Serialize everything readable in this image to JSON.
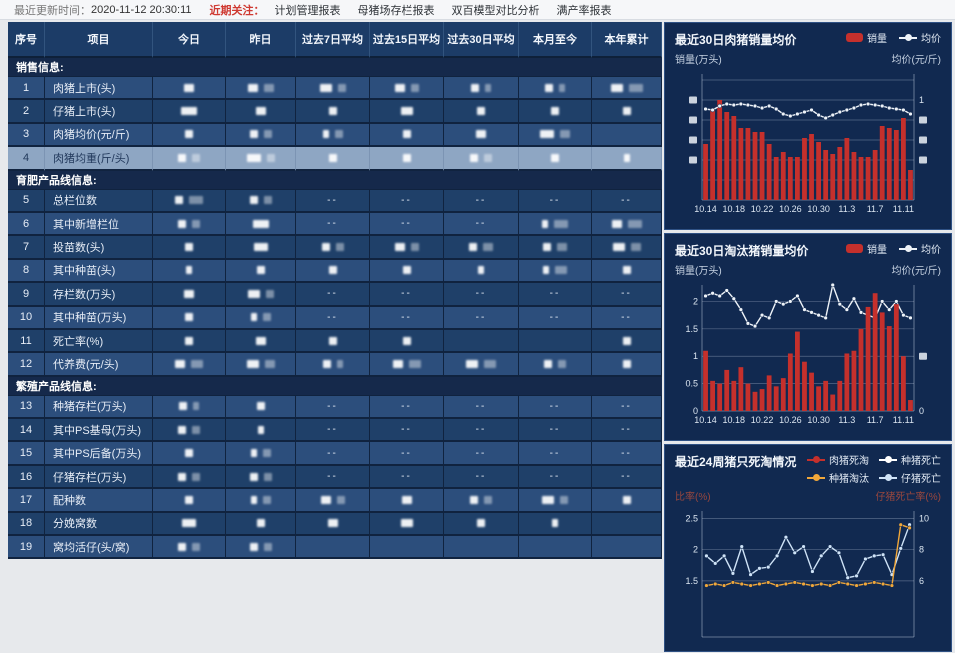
{
  "topbar": {
    "update_label": "最近更新时间：",
    "update_time": "2020-11-12 20:30:11",
    "focus_label": "近期关注：",
    "links": [
      "计划管理报表",
      "母猪场存栏报表",
      "双百模型对比分析",
      "满产率报表"
    ]
  },
  "table": {
    "redacted": true,
    "columns": [
      "序号",
      "项目",
      "今日",
      "昨日",
      "过去7日平均",
      "过去15日平均",
      "过去30日平均",
      "本月至今",
      "本年累计"
    ],
    "sections": [
      {
        "title": "销售信息:",
        "rows": [
          {
            "no": "1",
            "label": "肉猪上市(头)",
            "cells": [
              [
                10
              ],
              [
                10,
                10
              ],
              [
                12,
                8
              ],
              [
                10,
                8
              ],
              [
                8,
                6
              ],
              [
                8,
                6
              ],
              [
                12,
                14
              ]
            ]
          },
          {
            "no": "2",
            "label": "仔猪上市(头)",
            "cells": [
              [
                16
              ],
              [
                10
              ],
              [
                8
              ],
              [
                12
              ],
              [
                8
              ],
              [
                8
              ],
              [
                8
              ]
            ]
          },
          {
            "no": "3",
            "label": "肉猪均价(元/斤)",
            "cells": [
              [
                8
              ],
              [
                8,
                8
              ],
              [
                6,
                8
              ],
              [
                8
              ],
              [
                10
              ],
              [
                14,
                10
              ],
              []
            ]
          },
          {
            "no": "4",
            "label": "肉猪均重(斤/头)",
            "cells": [
              [
                8,
                8
              ],
              [
                14,
                8
              ],
              [
                8
              ],
              [
                8
              ],
              [
                8,
                8
              ],
              [
                8
              ],
              [
                6
              ]
            ],
            "highlight": true
          }
        ]
      },
      {
        "title": "育肥产品线信息:",
        "rows": [
          {
            "no": "5",
            "label": "总栏位数",
            "cells": [
              [
                8,
                14
              ],
              [
                8,
                8
              ],
              "--",
              "--",
              "--",
              "--",
              "--"
            ]
          },
          {
            "no": "6",
            "label": "其中新增栏位",
            "cells": [
              [
                8,
                8
              ],
              [
                16
              ],
              "--",
              "--",
              "--",
              [
                6,
                14
              ],
              [
                10,
                14
              ]
            ]
          },
          {
            "no": "7",
            "label": "投苗数(头)",
            "cells": [
              [
                8
              ],
              [
                14
              ],
              [
                8,
                8
              ],
              [
                10,
                8
              ],
              [
                8,
                10
              ],
              [
                8,
                10
              ],
              [
                12,
                10
              ]
            ]
          },
          {
            "no": "8",
            "label": "其中种苗(头)",
            "cells": [
              [
                6
              ],
              [
                8
              ],
              [
                8
              ],
              [
                8
              ],
              [
                6
              ],
              [
                6,
                12
              ],
              [
                8
              ]
            ]
          },
          {
            "no": "9",
            "label": "存栏数(万头)",
            "cells": [
              [
                10
              ],
              [
                12,
                8
              ],
              "--",
              "--",
              "--",
              "--",
              "--"
            ]
          },
          {
            "no": "10",
            "label": "其中种苗(万头)",
            "cells": [
              [
                8
              ],
              [
                6,
                8
              ],
              "--",
              "--",
              "--",
              "--",
              "--"
            ]
          },
          {
            "no": "11",
            "label": "死亡率(%)",
            "cells": [
              [
                8
              ],
              [
                10
              ],
              [
                8
              ],
              [
                8
              ],
              [],
              [],
              [
                8
              ]
            ]
          },
          {
            "no": "12",
            "label": "代养费(元/头)",
            "cells": [
              [
                10,
                12
              ],
              [
                12,
                10
              ],
              [
                8,
                6
              ],
              [
                10,
                12
              ],
              [
                12,
                12
              ],
              [
                8,
                8
              ],
              [
                8
              ]
            ]
          }
        ]
      },
      {
        "title": "繁殖产品线信息:",
        "rows": [
          {
            "no": "13",
            "label": "种猪存栏(万头)",
            "cells": [
              [
                8,
                6
              ],
              [
                8
              ],
              "--",
              "--",
              "--",
              "--",
              "--"
            ]
          },
          {
            "no": "14",
            "label": "其中PS基母(万头)",
            "cells": [
              [
                8,
                8
              ],
              [
                6
              ],
              "--",
              "--",
              "--",
              "--",
              "--"
            ]
          },
          {
            "no": "15",
            "label": "其中PS后备(万头)",
            "cells": [
              [
                8
              ],
              [
                6,
                8
              ],
              "--",
              "--",
              "--",
              "--",
              "--"
            ]
          },
          {
            "no": "16",
            "label": "仔猪存栏(万头)",
            "cells": [
              [
                8,
                8
              ],
              [
                8,
                8
              ],
              "--",
              "--",
              "--",
              "--",
              "--"
            ]
          },
          {
            "no": "17",
            "label": "配种数",
            "cells": [
              [
                8
              ],
              [
                6,
                8
              ],
              [
                10,
                8
              ],
              [
                10
              ],
              [
                8,
                8
              ],
              [
                12,
                8
              ],
              [
                8
              ]
            ]
          },
          {
            "no": "18",
            "label": "分娩窝数",
            "cells": [
              [
                14
              ],
              [
                8
              ],
              [
                10
              ],
              [
                12
              ],
              [
                8
              ],
              [
                6
              ],
              []
            ]
          },
          {
            "no": "19",
            "label": "窝均活仔(头/窝)",
            "cells": [
              [
                8,
                8
              ],
              [
                8,
                8
              ],
              [],
              [],
              [],
              [],
              []
            ]
          }
        ]
      }
    ]
  },
  "charts": [
    {
      "title": "最近30日肉猪销量均价",
      "y_left_label": "销量(万头)",
      "y_right_label": "均价(元/斤)",
      "legend": [
        {
          "label": "销量",
          "type": "bar",
          "color": "#c5302c"
        },
        {
          "label": "均价",
          "type": "line",
          "color": "#eef3f8"
        }
      ],
      "chart_data": {
        "type": "bar+line",
        "n": 30,
        "ylim": [
          0,
          1.26
        ],
        "grid": [
          0.2,
          0.4,
          0.6,
          0.8,
          1.0,
          1.2
        ],
        "note": "axis value labels redacted in source; bar/line values are normalized estimates",
        "bar_color": "#c5302c",
        "bars": [
          0.56,
          0.9,
          1.0,
          0.88,
          0.84,
          0.72,
          0.72,
          0.68,
          0.68,
          0.56,
          0.43,
          0.48,
          0.43,
          0.43,
          0.62,
          0.66,
          0.58,
          0.5,
          0.46,
          0.53,
          0.62,
          0.48,
          0.43,
          0.43,
          0.5,
          0.74,
          0.72,
          0.7,
          0.82,
          0.3
        ],
        "lines": [
          {
            "name": "均价",
            "color": "#eef3f8",
            "values": [
              0.91,
              0.9,
              0.94,
              0.96,
              0.95,
              0.96,
              0.95,
              0.94,
              0.92,
              0.94,
              0.91,
              0.86,
              0.84,
              0.86,
              0.88,
              0.9,
              0.85,
              0.82,
              0.85,
              0.88,
              0.9,
              0.92,
              0.95,
              0.96,
              0.95,
              0.94,
              0.92,
              0.91,
              0.9,
              0.86
            ]
          }
        ],
        "left_ticks": [
          {
            "v": 1.0,
            "r": 1
          },
          {
            "v": 0.8,
            "r": 1
          },
          {
            "v": 0.6,
            "r": 1
          },
          {
            "v": 0.4,
            "r": 1
          }
        ],
        "right_ticks": [
          {
            "v": 1.0,
            "label": "1"
          },
          {
            "v": 0.8,
            "r": 1
          },
          {
            "v": 0.6,
            "r": 1
          },
          {
            "v": 0.4,
            "r": 1
          }
        ],
        "x_ticks": [
          {
            "i": 0,
            "label": "10.14"
          },
          {
            "i": 4,
            "label": "10.18"
          },
          {
            "i": 8,
            "label": "10.22"
          },
          {
            "i": 12,
            "label": "10.26"
          },
          {
            "i": 16,
            "label": "10.30"
          },
          {
            "i": 20,
            "label": "11.3"
          },
          {
            "i": 24,
            "label": "11.7"
          },
          {
            "i": 28,
            "label": "11.11"
          }
        ]
      }
    },
    {
      "title": "最近30日淘汰猪销量均价",
      "y_left_label": "销量(万头)",
      "y_right_label": "均价(元/斤)",
      "legend": [
        {
          "label": "销量",
          "type": "bar",
          "color": "#c5302c"
        },
        {
          "label": "均价",
          "type": "line",
          "color": "#eef3f8"
        }
      ],
      "chart_data": {
        "type": "bar+line",
        "n": 30,
        "ylim": [
          0,
          2.3
        ],
        "grid": [
          0.5,
          1,
          1.5,
          2
        ],
        "bars_on_top": true,
        "bar_color": "#c5302c",
        "bars": [
          1.1,
          0.55,
          0.5,
          0.75,
          0.55,
          0.8,
          0.5,
          0.35,
          0.4,
          0.65,
          0.45,
          0.6,
          1.05,
          1.45,
          0.9,
          0.7,
          0.45,
          0.55,
          0.3,
          0.55,
          1.05,
          1.1,
          1.5,
          1.9,
          2.15,
          1.8,
          1.55,
          1.95,
          1.0,
          0.2
        ],
        "lines": [
          {
            "name": "均价",
            "color": "#eef3f8",
            "values": [
              2.1,
              2.15,
              2.1,
              2.2,
              2.05,
              1.85,
              1.6,
              1.55,
              1.75,
              1.7,
              2.0,
              1.95,
              2.0,
              2.1,
              1.85,
              1.8,
              1.75,
              1.7,
              2.3,
              1.95,
              1.85,
              2.05,
              1.8,
              1.75,
              1.7,
              2.0,
              1.85,
              2.0,
              1.75,
              1.7
            ]
          }
        ],
        "left_ticks": [
          {
            "v": 2,
            "label": "2"
          },
          {
            "v": 1.5,
            "label": "1.5"
          },
          {
            "v": 1,
            "label": "1"
          },
          {
            "v": 0.5,
            "label": "0.5"
          },
          {
            "v": 0,
            "label": "0"
          }
        ],
        "right_ticks": [
          {
            "v": 1,
            "r": 1
          },
          {
            "v": 0,
            "label": "0"
          }
        ],
        "x_ticks": [
          {
            "i": 0,
            "label": "10.14"
          },
          {
            "i": 4,
            "label": "10.18"
          },
          {
            "i": 8,
            "label": "10.22"
          },
          {
            "i": 12,
            "label": "10.26"
          },
          {
            "i": 16,
            "label": "10.30"
          },
          {
            "i": 20,
            "label": "11.3"
          },
          {
            "i": 24,
            "label": "11.7"
          },
          {
            "i": 28,
            "label": "11.11"
          }
        ]
      }
    },
    {
      "title": "最近24周猪只死淘情况",
      "y_left_label": "比率(%)",
      "y_right_label": "仔猪死亡率(%)",
      "legend": [
        {
          "label": "肉猪死淘",
          "type": "line",
          "color": "#c5302c"
        },
        {
          "label": "种猪死亡",
          "type": "line",
          "color": "#ffffff"
        },
        {
          "label": "种猪淘汰",
          "type": "line",
          "color": "#f0a73a"
        },
        {
          "label": "仔猪死亡",
          "type": "line",
          "color": "#cfe3f7"
        }
      ],
      "chart_data": {
        "type": "line",
        "n": 24,
        "ylim": [
          0.6,
          2.62
        ],
        "grid": [
          1.5,
          2,
          2.5
        ],
        "right_axis_map": "right = 6 + (left - 1.5) * 4",
        "lines": [
          {
            "name": "仔猪死亡",
            "color": "#cfe3f7",
            "values": [
              1.9,
              1.78,
              1.9,
              1.62,
              2.05,
              1.6,
              1.7,
              1.72,
              1.9,
              2.2,
              1.95,
              2.05,
              1.65,
              1.9,
              2.05,
              1.95,
              1.55,
              1.58,
              1.85,
              1.9,
              1.92,
              1.6,
              2.02,
              2.4
            ]
          },
          {
            "name": "种猪淘汰",
            "color": "#f0a73a",
            "right": true,
            "values": [
              5.7,
              5.8,
              5.7,
              5.9,
              5.8,
              5.7,
              5.8,
              5.9,
              5.7,
              5.8,
              5.9,
              5.8,
              5.7,
              5.8,
              5.7,
              5.9,
              5.8,
              5.7,
              5.8,
              5.9,
              5.8,
              5.7,
              9.6,
              9.4
            ]
          }
        ],
        "left_ticks": [
          {
            "v": 2.5,
            "label": "2.5"
          },
          {
            "v": 2,
            "label": "2"
          },
          {
            "v": 1.5,
            "label": "1.5"
          }
        ],
        "right_ticks": [
          {
            "v": 2.5,
            "label": "10"
          },
          {
            "v": 2,
            "label": "8"
          },
          {
            "v": 1.5,
            "label": "6"
          }
        ],
        "x_ticks": []
      }
    }
  ]
}
